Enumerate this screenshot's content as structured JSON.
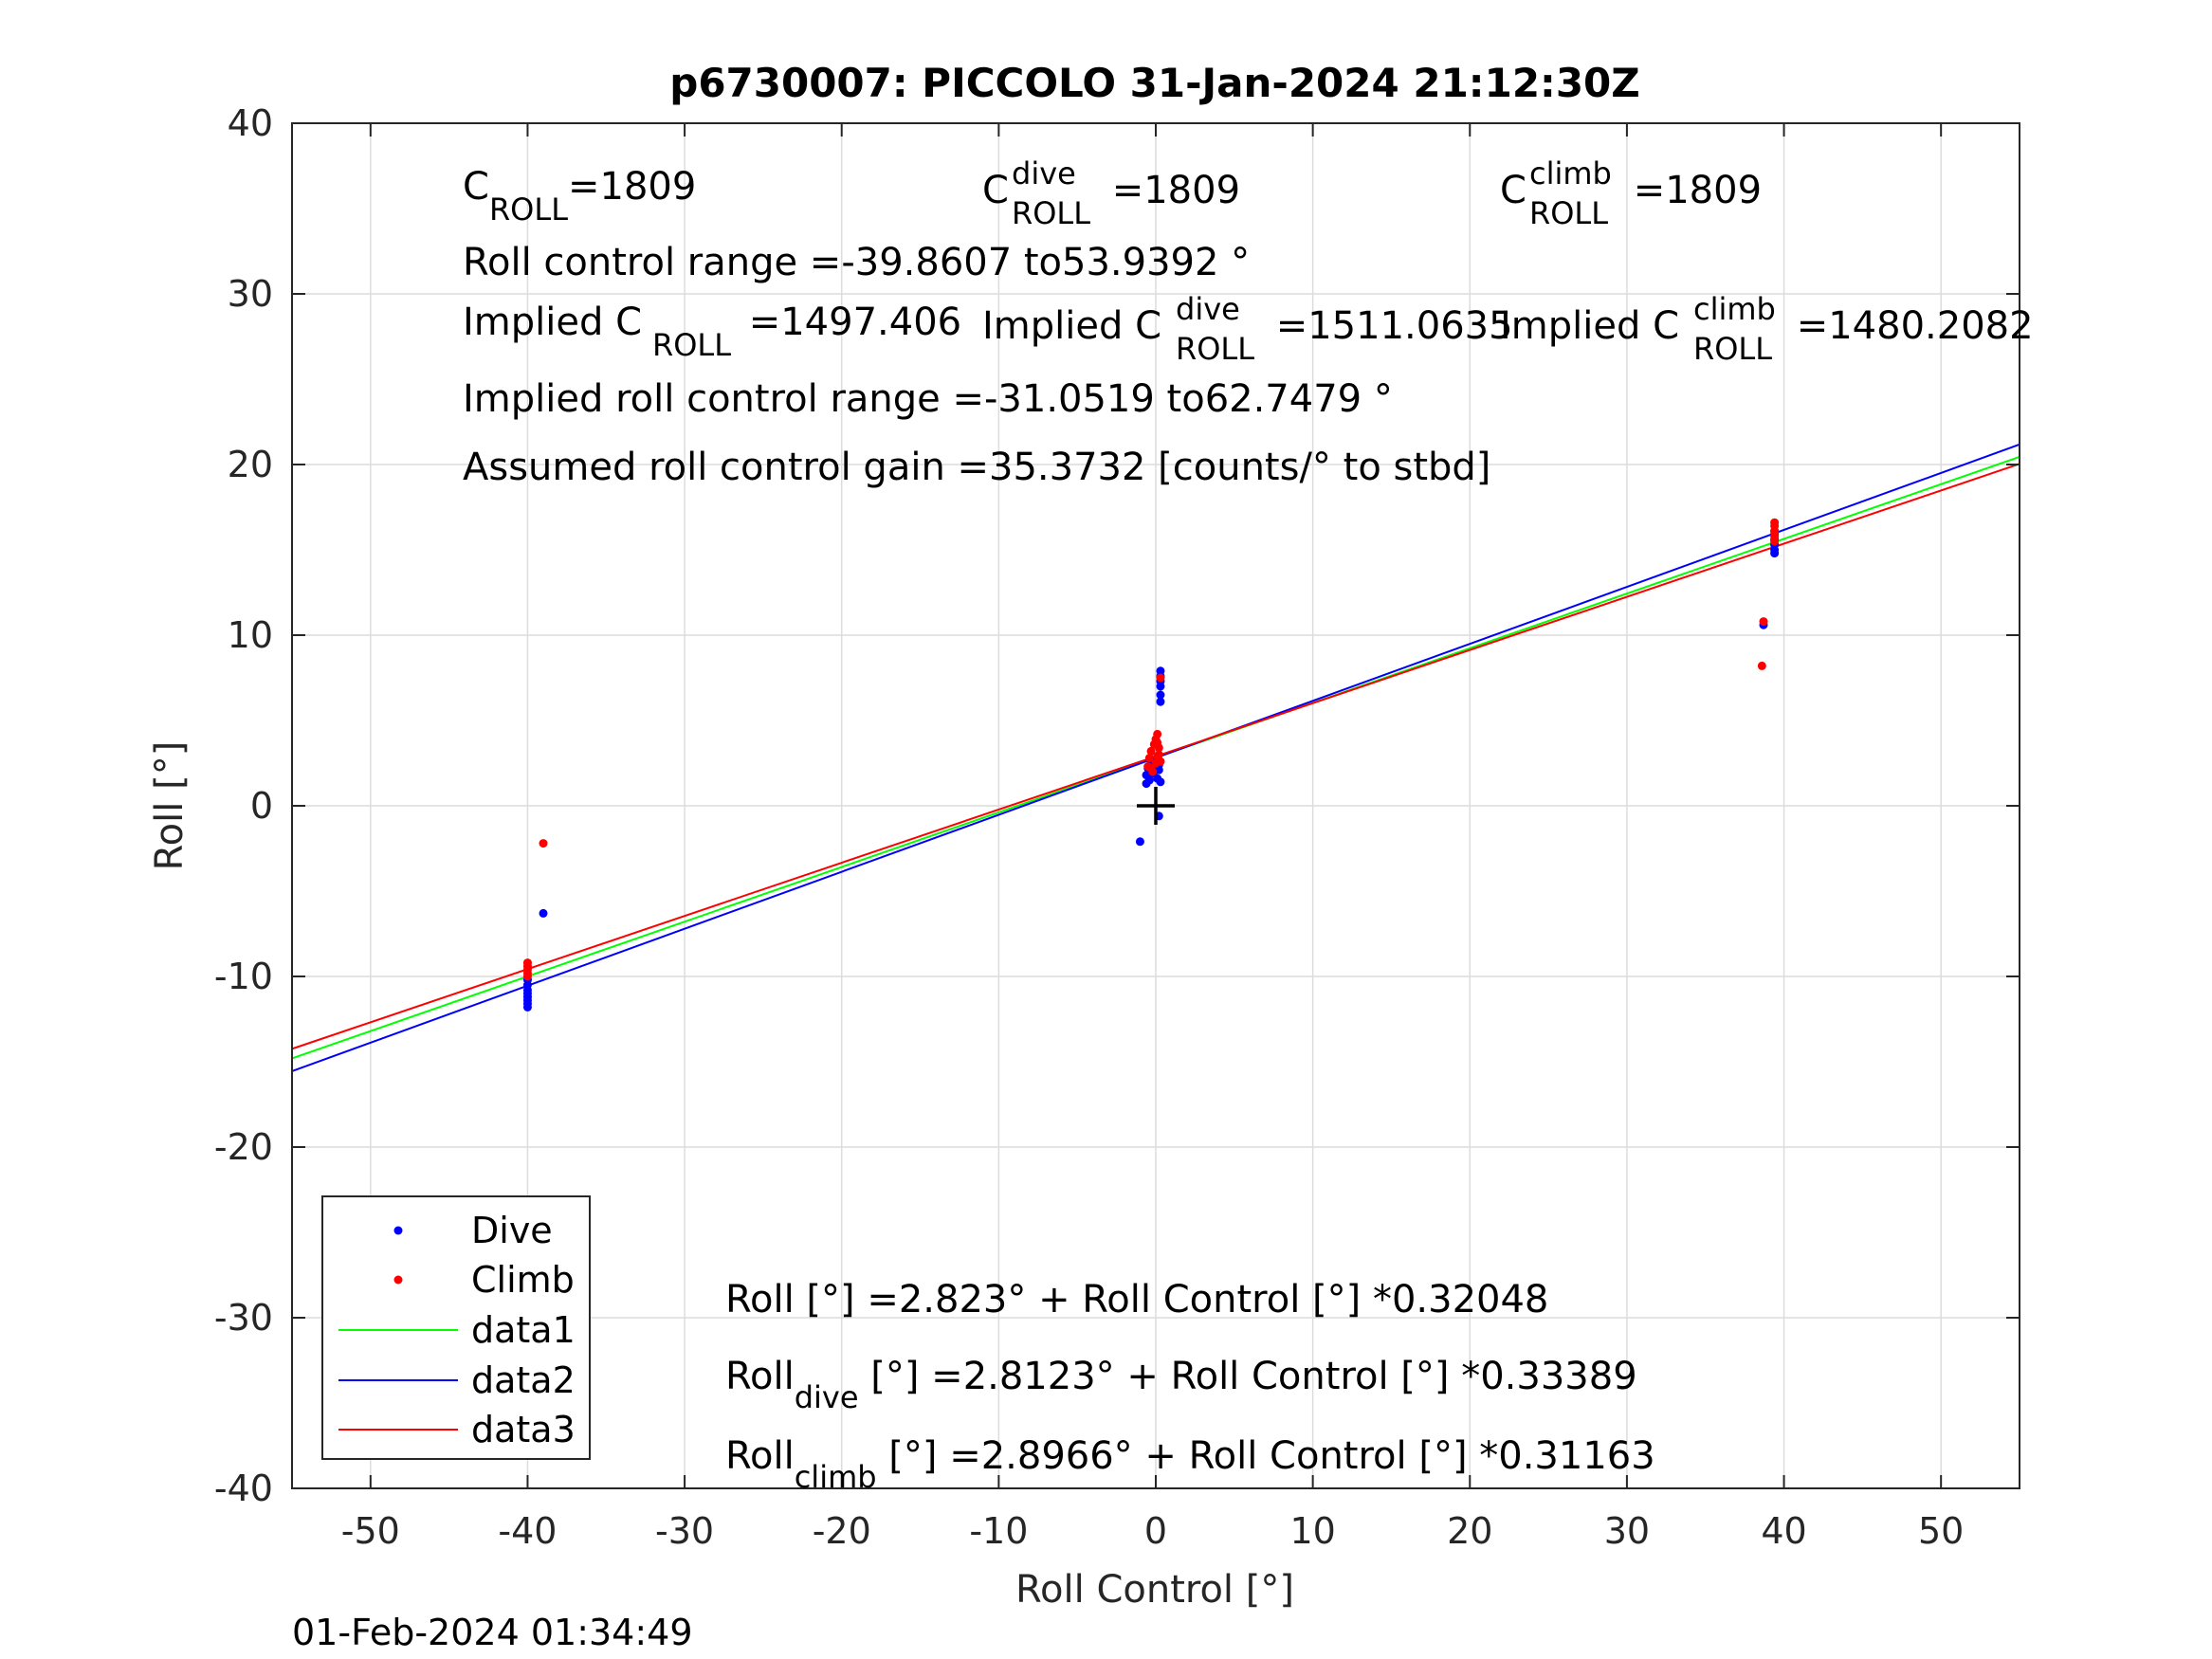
{
  "figure": {
    "timestamp": "01-Feb-2024 01:34:49"
  },
  "chart_data": {
    "type": "scatter",
    "title": "p6730007: PICCOLO 31-Jan-2024 21:12:30Z",
    "xlabel": "Roll Control [°]",
    "ylabel": "Roll [°]",
    "xlim": [
      -55,
      55
    ],
    "ylim": [
      -40,
      40
    ],
    "xticks": [
      -50,
      -40,
      -30,
      -20,
      -10,
      0,
      10,
      20,
      30,
      40,
      50
    ],
    "yticks": [
      -40,
      -30,
      -20,
      -10,
      0,
      10,
      20,
      30,
      40
    ],
    "grid": true,
    "legend_position": "bottom-left",
    "marker": {
      "x": 0,
      "y": 0,
      "color": "#000000"
    },
    "annotations": {
      "c_roll": {
        "base": "C",
        "sub": "ROLL",
        "value": "=1809"
      },
      "c_roll_dive": {
        "base": "C",
        "sup": "dive",
        "sub": "ROLL",
        "value": " =1809"
      },
      "c_roll_climb": {
        "base": "C",
        "sup": "climb",
        "sub": "ROLL",
        "value": " =1809"
      },
      "roll_range": "Roll control range =-39.8607 to53.9392 °",
      "implied_c_roll": {
        "base": "Implied C",
        "sub": "ROLL",
        "value": " =1497.406"
      },
      "implied_c_roll_dive": {
        "base": "Implied C",
        "sup": "dive",
        "sub": "ROLL",
        "value": " =1511.0635"
      },
      "implied_c_roll_climb": {
        "base": "Implied C",
        "sup": "climb",
        "sub": "ROLL",
        "value": " =1480.2082"
      },
      "implied_range": "Implied roll control range =-31.0519 to62.7479 °",
      "gain": "Assumed roll control gain =35.3732 [counts/° to stbd]",
      "fit_all": "Roll [°] =2.823° + Roll Control [°] *0.32048",
      "fit_dive": {
        "base": "Roll",
        "sub": "dive",
        "rest": " [°] =2.8123° + Roll Control [°] *0.33389"
      },
      "fit_climb": {
        "base": "Roll",
        "sub": "climb",
        "rest": " [°] =2.8966° + Roll Control [°] *0.31163"
      }
    },
    "series": [
      {
        "name": "Dive",
        "kind": "points",
        "color": "#0000ff",
        "points": [
          [
            -40,
            -10.5
          ],
          [
            -40,
            -10.8
          ],
          [
            -40,
            -11.0
          ],
          [
            -40,
            -11.2
          ],
          [
            -40,
            -11.4
          ],
          [
            -40,
            -11.6
          ],
          [
            -40,
            -11.8
          ],
          [
            -40,
            -10.2
          ],
          [
            -39,
            -6.3
          ],
          [
            -1,
            -2.1
          ],
          [
            -0.6,
            1.3
          ],
          [
            -0.6,
            1.8
          ],
          [
            -0.5,
            2.2
          ],
          [
            -0.4,
            1.5
          ],
          [
            -0.3,
            2.5
          ],
          [
            -0.2,
            1.9
          ],
          [
            -0.1,
            2.0
          ],
          [
            0,
            2.3
          ],
          [
            0.1,
            1.6
          ],
          [
            0.1,
            2.8
          ],
          [
            0.2,
            2.1
          ],
          [
            0.2,
            2.4
          ],
          [
            0.3,
            6.1
          ],
          [
            0.3,
            6.5
          ],
          [
            0.3,
            7.0
          ],
          [
            0.3,
            7.3
          ],
          [
            0.3,
            7.6
          ],
          [
            0.3,
            7.9
          ],
          [
            0.3,
            1.4
          ],
          [
            0.2,
            -0.6
          ],
          [
            39.4,
            15.0
          ],
          [
            39.4,
            15.3
          ],
          [
            39.4,
            15.6
          ],
          [
            39.4,
            15.9
          ],
          [
            39.4,
            16.1
          ],
          [
            39.4,
            14.8
          ],
          [
            38.7,
            10.6
          ]
        ]
      },
      {
        "name": "Climb",
        "kind": "points",
        "color": "#ff0000",
        "points": [
          [
            -40,
            -9.2
          ],
          [
            -40,
            -9.4
          ],
          [
            -40,
            -9.6
          ],
          [
            -40,
            -9.8
          ],
          [
            -40,
            -10.0
          ],
          [
            -39,
            -2.2
          ],
          [
            -0.5,
            2.3
          ],
          [
            -0.4,
            2.8
          ],
          [
            -0.3,
            3.2
          ],
          [
            -0.2,
            2.0
          ],
          [
            -0.1,
            3.6
          ],
          [
            0,
            2.5
          ],
          [
            0,
            3.9
          ],
          [
            0.1,
            2.9
          ],
          [
            0.1,
            4.2
          ],
          [
            0.2,
            3.0
          ],
          [
            0.2,
            3.4
          ],
          [
            0.3,
            2.6
          ],
          [
            0.3,
            7.5
          ],
          [
            -0.3,
            2.2
          ],
          [
            0.1,
            3.7
          ],
          [
            39.4,
            15.5
          ],
          [
            39.4,
            15.8
          ],
          [
            39.4,
            16.1
          ],
          [
            39.4,
            16.4
          ],
          [
            39.4,
            16.6
          ],
          [
            38.7,
            10.8
          ],
          [
            38.6,
            8.2
          ]
        ]
      },
      {
        "name": "data1",
        "kind": "line",
        "color": "#00ff00",
        "intercept": 2.823,
        "slope": 0.32048
      },
      {
        "name": "data2",
        "kind": "line",
        "color": "#0000ff",
        "intercept": 2.8123,
        "slope": 0.33389
      },
      {
        "name": "data3",
        "kind": "line",
        "color": "#ff0000",
        "intercept": 2.8966,
        "slope": 0.31163
      }
    ]
  }
}
